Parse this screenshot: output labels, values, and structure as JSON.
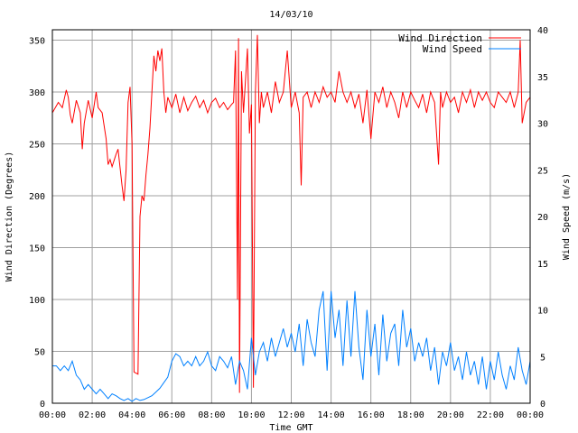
{
  "chart_data": {
    "type": "line",
    "title": "14/03/10",
    "xlabel": "Time GMT",
    "ylabel": "Wind Direction (Degrees)",
    "y2label": "Wind Speed (m/s)",
    "xlim": [
      0,
      24
    ],
    "ylim": [
      0,
      360
    ],
    "y2lim": [
      0,
      40
    ],
    "x_tick_labels": [
      "00:00",
      "02:00",
      "04:00",
      "06:00",
      "08:00",
      "10:00",
      "12:00",
      "14:00",
      "16:00",
      "18:00",
      "20:00",
      "22:00",
      "00:00"
    ],
    "y_ticks": [
      0,
      50,
      100,
      150,
      200,
      250,
      300,
      350
    ],
    "y2_ticks": [
      0,
      5,
      10,
      15,
      20,
      25,
      30,
      35,
      40
    ],
    "grid": true,
    "legend_position": "top-right",
    "colors": {
      "direction": "#ff0000",
      "speed": "#0080ff",
      "grid": "#a0a0a0",
      "axes": "#000000"
    },
    "series": [
      {
        "name": "Wind Direction",
        "axis": "left",
        "color": "#ff0000",
        "points": [
          [
            0,
            280
          ],
          [
            0.3,
            290
          ],
          [
            0.5,
            285
          ],
          [
            0.7,
            302
          ],
          [
            0.8,
            295
          ],
          [
            0.9,
            278
          ],
          [
            1.0,
            270
          ],
          [
            1.2,
            292
          ],
          [
            1.4,
            280
          ],
          [
            1.5,
            245
          ],
          [
            1.6,
            270
          ],
          [
            1.8,
            292
          ],
          [
            2.0,
            275
          ],
          [
            2.2,
            300
          ],
          [
            2.3,
            285
          ],
          [
            2.5,
            280
          ],
          [
            2.7,
            255
          ],
          [
            2.8,
            230
          ],
          [
            2.9,
            235
          ],
          [
            3.0,
            228
          ],
          [
            3.2,
            240
          ],
          [
            3.3,
            245
          ],
          [
            3.5,
            210
          ],
          [
            3.6,
            195
          ],
          [
            3.7,
            225
          ],
          [
            3.8,
            290
          ],
          [
            3.9,
            305
          ],
          [
            4.0,
            250
          ],
          [
            4.1,
            30
          ],
          [
            4.3,
            28
          ],
          [
            4.4,
            180
          ],
          [
            4.5,
            200
          ],
          [
            4.6,
            195
          ],
          [
            4.7,
            220
          ],
          [
            4.8,
            240
          ],
          [
            4.9,
            265
          ],
          [
            5.0,
            300
          ],
          [
            5.1,
            335
          ],
          [
            5.2,
            320
          ],
          [
            5.3,
            340
          ],
          [
            5.4,
            330
          ],
          [
            5.5,
            342
          ],
          [
            5.6,
            300
          ],
          [
            5.7,
            280
          ],
          [
            5.8,
            295
          ],
          [
            6.0,
            285
          ],
          [
            6.2,
            298
          ],
          [
            6.4,
            280
          ],
          [
            6.6,
            295
          ],
          [
            6.8,
            282
          ],
          [
            7.0,
            290
          ],
          [
            7.2,
            296
          ],
          [
            7.4,
            285
          ],
          [
            7.6,
            292
          ],
          [
            7.8,
            280
          ],
          [
            8.0,
            290
          ],
          [
            8.2,
            294
          ],
          [
            8.4,
            285
          ],
          [
            8.6,
            290
          ],
          [
            8.8,
            283
          ],
          [
            9.0,
            288
          ],
          [
            9.1,
            290
          ],
          [
            9.2,
            340
          ],
          [
            9.3,
            100
          ],
          [
            9.35,
            352
          ],
          [
            9.4,
            10
          ],
          [
            9.5,
            320
          ],
          [
            9.6,
            280
          ],
          [
            9.8,
            342
          ],
          [
            9.9,
            260
          ],
          [
            10.0,
            288
          ],
          [
            10.1,
            15
          ],
          [
            10.2,
            300
          ],
          [
            10.3,
            355
          ],
          [
            10.4,
            270
          ],
          [
            10.5,
            300
          ],
          [
            10.6,
            285
          ],
          [
            10.8,
            300
          ],
          [
            11.0,
            280
          ],
          [
            11.2,
            310
          ],
          [
            11.4,
            290
          ],
          [
            11.6,
            300
          ],
          [
            11.8,
            340
          ],
          [
            12.0,
            285
          ],
          [
            12.2,
            300
          ],
          [
            12.4,
            280
          ],
          [
            12.5,
            210
          ],
          [
            12.6,
            295
          ],
          [
            12.8,
            300
          ],
          [
            13.0,
            285
          ],
          [
            13.2,
            300
          ],
          [
            13.4,
            290
          ],
          [
            13.6,
            305
          ],
          [
            13.8,
            295
          ],
          [
            14.0,
            300
          ],
          [
            14.2,
            290
          ],
          [
            14.4,
            320
          ],
          [
            14.6,
            300
          ],
          [
            14.8,
            290
          ],
          [
            15.0,
            300
          ],
          [
            15.2,
            285
          ],
          [
            15.4,
            298
          ],
          [
            15.6,
            270
          ],
          [
            15.8,
            302
          ],
          [
            16.0,
            255
          ],
          [
            16.2,
            300
          ],
          [
            16.4,
            290
          ],
          [
            16.6,
            305
          ],
          [
            16.8,
            285
          ],
          [
            17.0,
            300
          ],
          [
            17.2,
            290
          ],
          [
            17.4,
            275
          ],
          [
            17.6,
            300
          ],
          [
            17.8,
            285
          ],
          [
            18.0,
            300
          ],
          [
            18.2,
            292
          ],
          [
            18.4,
            285
          ],
          [
            18.6,
            298
          ],
          [
            18.8,
            280
          ],
          [
            19.0,
            300
          ],
          [
            19.2,
            290
          ],
          [
            19.4,
            230
          ],
          [
            19.5,
            300
          ],
          [
            19.6,
            285
          ],
          [
            19.8,
            300
          ],
          [
            20.0,
            290
          ],
          [
            20.2,
            295
          ],
          [
            20.4,
            280
          ],
          [
            20.6,
            300
          ],
          [
            20.8,
            290
          ],
          [
            21.0,
            302
          ],
          [
            21.2,
            285
          ],
          [
            21.4,
            300
          ],
          [
            21.6,
            292
          ],
          [
            21.8,
            300
          ],
          [
            22.0,
            290
          ],
          [
            22.2,
            285
          ],
          [
            22.4,
            300
          ],
          [
            22.6,
            295
          ],
          [
            22.8,
            290
          ],
          [
            23.0,
            300
          ],
          [
            23.2,
            285
          ],
          [
            23.4,
            300
          ],
          [
            23.5,
            350
          ],
          [
            23.6,
            270
          ],
          [
            23.8,
            290
          ],
          [
            24.0,
            295
          ]
        ]
      },
      {
        "name": "Wind Speed",
        "axis": "right",
        "color": "#0080ff",
        "points": [
          [
            0,
            4
          ],
          [
            0.2,
            4
          ],
          [
            0.4,
            3.5
          ],
          [
            0.6,
            4
          ],
          [
            0.8,
            3.5
          ],
          [
            1.0,
            4.5
          ],
          [
            1.2,
            3
          ],
          [
            1.4,
            2.5
          ],
          [
            1.6,
            1.5
          ],
          [
            1.8,
            2
          ],
          [
            2.0,
            1.5
          ],
          [
            2.2,
            1
          ],
          [
            2.4,
            1.5
          ],
          [
            2.6,
            1
          ],
          [
            2.8,
            0.5
          ],
          [
            3.0,
            1
          ],
          [
            3.2,
            0.8
          ],
          [
            3.4,
            0.5
          ],
          [
            3.6,
            0.3
          ],
          [
            3.8,
            0.5
          ],
          [
            4.0,
            0.2
          ],
          [
            4.2,
            0.5
          ],
          [
            4.4,
            0.3
          ],
          [
            4.6,
            0.4
          ],
          [
            4.8,
            0.6
          ],
          [
            5.0,
            0.8
          ],
          [
            5.2,
            1.2
          ],
          [
            5.4,
            1.6
          ],
          [
            5.6,
            2.2
          ],
          [
            5.8,
            2.8
          ],
          [
            6.0,
            4.5
          ],
          [
            6.2,
            5.3
          ],
          [
            6.4,
            5.0
          ],
          [
            6.6,
            4.0
          ],
          [
            6.8,
            4.5
          ],
          [
            7.0,
            4.0
          ],
          [
            7.2,
            5.0
          ],
          [
            7.4,
            4.0
          ],
          [
            7.6,
            4.5
          ],
          [
            7.8,
            5.5
          ],
          [
            8.0,
            4.0
          ],
          [
            8.2,
            3.5
          ],
          [
            8.4,
            5.0
          ],
          [
            8.6,
            4.5
          ],
          [
            8.8,
            3.8
          ],
          [
            9.0,
            5.0
          ],
          [
            9.2,
            2
          ],
          [
            9.4,
            4.5
          ],
          [
            9.6,
            3.5
          ],
          [
            9.8,
            1.5
          ],
          [
            10.0,
            7.0
          ],
          [
            10.2,
            3.0
          ],
          [
            10.4,
            5.5
          ],
          [
            10.6,
            6.5
          ],
          [
            10.8,
            4.5
          ],
          [
            11.0,
            7.0
          ],
          [
            11.2,
            5.0
          ],
          [
            11.4,
            6.5
          ],
          [
            11.6,
            8.0
          ],
          [
            11.8,
            6.0
          ],
          [
            12.0,
            7.5
          ],
          [
            12.2,
            5.5
          ],
          [
            12.4,
            8.5
          ],
          [
            12.6,
            4.0
          ],
          [
            12.8,
            9.0
          ],
          [
            13.0,
            6.5
          ],
          [
            13.2,
            5.0
          ],
          [
            13.4,
            10.0
          ],
          [
            13.6,
            12.0
          ],
          [
            13.8,
            3.5
          ],
          [
            14.0,
            12.0
          ],
          [
            14.2,
            7.0
          ],
          [
            14.4,
            10.0
          ],
          [
            14.6,
            4.0
          ],
          [
            14.8,
            11.0
          ],
          [
            15.0,
            5.0
          ],
          [
            15.2,
            12.0
          ],
          [
            15.4,
            6.0
          ],
          [
            15.6,
            2.5
          ],
          [
            15.8,
            10.0
          ],
          [
            16.0,
            5.0
          ],
          [
            16.2,
            8.5
          ],
          [
            16.4,
            3.0
          ],
          [
            16.6,
            9.5
          ],
          [
            16.8,
            4.5
          ],
          [
            17.0,
            7.5
          ],
          [
            17.2,
            8.5
          ],
          [
            17.4,
            4.0
          ],
          [
            17.6,
            10.0
          ],
          [
            17.8,
            6.0
          ],
          [
            18.0,
            8.0
          ],
          [
            18.2,
            4.5
          ],
          [
            18.4,
            6.5
          ],
          [
            18.6,
            5.0
          ],
          [
            18.8,
            7.0
          ],
          [
            19.0,
            3.5
          ],
          [
            19.2,
            6.0
          ],
          [
            19.4,
            2.0
          ],
          [
            19.6,
            5.5
          ],
          [
            19.8,
            4.0
          ],
          [
            20.0,
            6.5
          ],
          [
            20.2,
            3.5
          ],
          [
            20.4,
            5.0
          ],
          [
            20.6,
            2.5
          ],
          [
            20.8,
            5.5
          ],
          [
            21.0,
            3.0
          ],
          [
            21.2,
            4.5
          ],
          [
            21.4,
            2.0
          ],
          [
            21.6,
            5.0
          ],
          [
            21.8,
            1.5
          ],
          [
            22.0,
            4.5
          ],
          [
            22.2,
            2.5
          ],
          [
            22.4,
            5.5
          ],
          [
            22.6,
            3.0
          ],
          [
            22.8,
            1.5
          ],
          [
            23.0,
            4.0
          ],
          [
            23.2,
            2.5
          ],
          [
            23.4,
            6.0
          ],
          [
            23.6,
            3.5
          ],
          [
            23.8,
            2.0
          ],
          [
            24.0,
            4.5
          ]
        ]
      }
    ]
  }
}
